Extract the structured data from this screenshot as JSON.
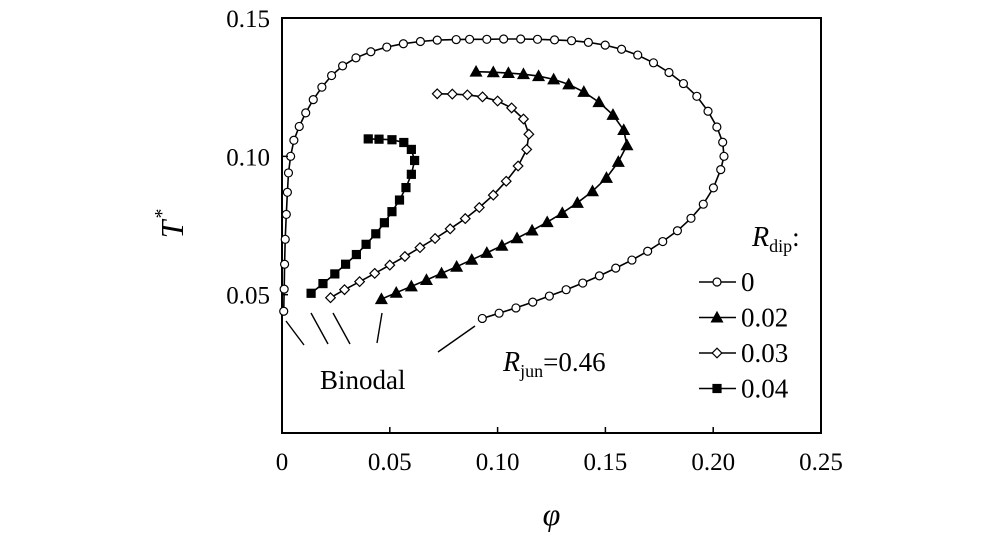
{
  "chart_data": {
    "type": "line",
    "xlabel": "φ",
    "ylabel": "T",
    "ylabel_superscript": "*",
    "xlim": [
      0,
      0.25
    ],
    "ylim": [
      0,
      0.15
    ],
    "x_ticks": [
      "0",
      "0.05",
      "0.10",
      "0.15",
      "0.20",
      "0.25"
    ],
    "x_tick_values": [
      0,
      0.05,
      0.1,
      0.15,
      0.2,
      0.25
    ],
    "y_ticks": [
      "0.05",
      "0.10",
      "0.15"
    ],
    "y_tick_values": [
      0.05,
      0.1,
      0.15
    ],
    "grid": false,
    "legend_title_main": "R",
    "legend_title_sub": "dip",
    "legend_title_suffix": ":",
    "legend_position": "bottom-right",
    "annotation_binodal": "Binodal",
    "annotation_r_main": "R",
    "annotation_r_sub": "jun",
    "annotation_r_value": "=0.46",
    "series": [
      {
        "name": "0",
        "marker": "open-circle",
        "points": [
          [
            0.0929,
            0.0414
          ],
          [
            0.1007,
            0.0433
          ],
          [
            0.1085,
            0.0452
          ],
          [
            0.1163,
            0.0473
          ],
          [
            0.124,
            0.0495
          ],
          [
            0.1318,
            0.0518
          ],
          [
            0.1395,
            0.0542
          ],
          [
            0.1472,
            0.0568
          ],
          [
            0.1548,
            0.0596
          ],
          [
            0.1623,
            0.0625
          ],
          [
            0.1696,
            0.0657
          ],
          [
            0.1766,
            0.0692
          ],
          [
            0.1834,
            0.0731
          ],
          [
            0.1897,
            0.0776
          ],
          [
            0.1954,
            0.0827
          ],
          [
            0.2001,
            0.0886
          ],
          [
            0.2035,
            0.0952
          ],
          [
            0.205,
            0.1
          ],
          [
            0.2044,
            0.1051
          ],
          [
            0.2017,
            0.1106
          ],
          [
            0.1976,
            0.1163
          ],
          [
            0.1924,
            0.1217
          ],
          [
            0.1862,
            0.1263
          ],
          [
            0.1795,
            0.1303
          ],
          [
            0.1723,
            0.1338
          ],
          [
            0.165,
            0.1366
          ],
          [
            0.1575,
            0.1387
          ],
          [
            0.1499,
            0.1402
          ],
          [
            0.1421,
            0.1412
          ],
          [
            0.1343,
            0.1418
          ],
          [
            0.1264,
            0.1421
          ],
          [
            0.1185,
            0.1423
          ],
          [
            0.1107,
            0.1424
          ],
          [
            0.1028,
            0.1424
          ],
          [
            0.095,
            0.1423
          ],
          [
            0.087,
            0.1423
          ],
          [
            0.0808,
            0.1422
          ],
          [
            0.072,
            0.142
          ],
          [
            0.0642,
            0.1415
          ],
          [
            0.0563,
            0.1407
          ],
          [
            0.0486,
            0.1395
          ],
          [
            0.0412,
            0.1378
          ],
          [
            0.0343,
            0.1356
          ],
          [
            0.0281,
            0.1327
          ],
          [
            0.023,
            0.1292
          ],
          [
            0.0185,
            0.125
          ],
          [
            0.0145,
            0.1205
          ],
          [
            0.011,
            0.1157
          ],
          [
            0.008,
            0.1108
          ],
          [
            0.0055,
            0.1058
          ],
          [
            0.004,
            0.1
          ],
          [
            0.003,
            0.094
          ],
          [
            0.0025,
            0.087
          ],
          [
            0.002,
            0.079
          ],
          [
            0.0015,
            0.07
          ],
          [
            0.0012,
            0.061
          ],
          [
            0.001,
            0.052
          ],
          [
            0.0008,
            0.044
          ]
        ]
      },
      {
        "name": "0.02",
        "marker": "filled-triangle",
        "points": [
          [
            0.0461,
            0.0484
          ],
          [
            0.053,
            0.0507
          ],
          [
            0.06,
            0.053
          ],
          [
            0.067,
            0.0553
          ],
          [
            0.074,
            0.0577
          ],
          [
            0.081,
            0.0601
          ],
          [
            0.088,
            0.0626
          ],
          [
            0.095,
            0.0651
          ],
          [
            0.102,
            0.0677
          ],
          [
            0.109,
            0.0704
          ],
          [
            0.116,
            0.0732
          ],
          [
            0.123,
            0.0762
          ],
          [
            0.13,
            0.0795
          ],
          [
            0.137,
            0.0832
          ],
          [
            0.144,
            0.0874
          ],
          [
            0.1505,
            0.0922
          ],
          [
            0.156,
            0.098
          ],
          [
            0.16,
            0.104
          ],
          [
            0.1585,
            0.1095
          ],
          [
            0.1535,
            0.115
          ],
          [
            0.147,
            0.1196
          ],
          [
            0.14,
            0.1233
          ],
          [
            0.133,
            0.126
          ],
          [
            0.126,
            0.1278
          ],
          [
            0.119,
            0.129
          ],
          [
            0.112,
            0.1297
          ],
          [
            0.105,
            0.1301
          ],
          [
            0.098,
            0.1304
          ],
          [
            0.09,
            0.1306
          ]
        ]
      },
      {
        "name": "0.03",
        "marker": "open-diamond",
        "points": [
          [
            0.0225,
            0.0489
          ],
          [
            0.029,
            0.0518
          ],
          [
            0.036,
            0.0547
          ],
          [
            0.043,
            0.0577
          ],
          [
            0.05,
            0.0607
          ],
          [
            0.057,
            0.0638
          ],
          [
            0.064,
            0.067
          ],
          [
            0.071,
            0.0703
          ],
          [
            0.078,
            0.0738
          ],
          [
            0.085,
            0.0775
          ],
          [
            0.0915,
            0.0815
          ],
          [
            0.098,
            0.086
          ],
          [
            0.104,
            0.091
          ],
          [
            0.1095,
            0.0965
          ],
          [
            0.1135,
            0.1025
          ],
          [
            0.1145,
            0.108
          ],
          [
            0.112,
            0.1135
          ],
          [
            0.1065,
            0.1175
          ],
          [
            0.1,
            0.12
          ],
          [
            0.093,
            0.1215
          ],
          [
            0.086,
            0.1222
          ],
          [
            0.079,
            0.1225
          ],
          [
            0.072,
            0.1226
          ]
        ]
      },
      {
        "name": "0.04",
        "marker": "filled-square",
        "points": [
          [
            0.0135,
            0.0505
          ],
          [
            0.019,
            0.054
          ],
          [
            0.0245,
            0.0575
          ],
          [
            0.0295,
            0.061
          ],
          [
            0.0345,
            0.0645
          ],
          [
            0.039,
            0.0682
          ],
          [
            0.0435,
            0.072
          ],
          [
            0.0475,
            0.076
          ],
          [
            0.051,
            0.08
          ],
          [
            0.0545,
            0.0842
          ],
          [
            0.0575,
            0.0887
          ],
          [
            0.06,
            0.0935
          ],
          [
            0.0615,
            0.0985
          ],
          [
            0.06,
            0.1025
          ],
          [
            0.0565,
            0.105
          ],
          [
            0.051,
            0.106
          ],
          [
            0.045,
            0.1062
          ],
          [
            0.04,
            0.1063
          ]
        ]
      }
    ]
  }
}
